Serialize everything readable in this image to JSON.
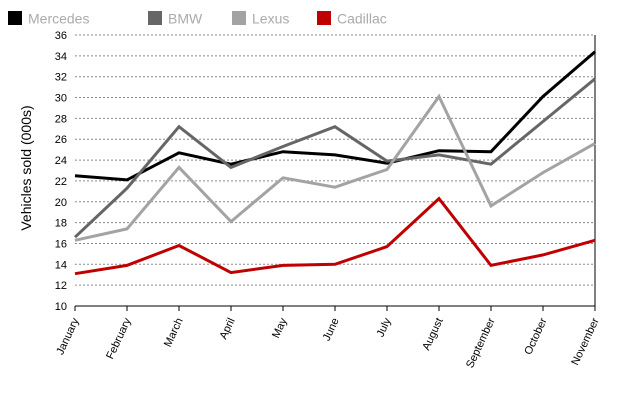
{
  "chart_data": {
    "type": "line",
    "title": "",
    "xlabel": "",
    "ylabel": "Vehicles sold (000s)",
    "ylim": [
      10,
      36
    ],
    "y_ticks": [
      "10",
      "12",
      "14",
      "16",
      "18",
      "20",
      "22",
      "24",
      "26",
      "28",
      "30",
      "32",
      "34",
      "36"
    ],
    "grid": "horizontal dotted",
    "legend": "top-left",
    "categories": [
      "January",
      "February",
      "March",
      "April",
      "May",
      "June",
      "July",
      "August",
      "September",
      "October",
      "November"
    ],
    "series": [
      {
        "name": "Mercedes",
        "color": "#000000",
        "values": [
          22.5,
          22.1,
          24.7,
          23.6,
          24.8,
          24.5,
          23.7,
          24.9,
          24.8,
          30.1,
          34.4
        ]
      },
      {
        "name": "BMW",
        "color": "#666666",
        "values": [
          16.6,
          21.3,
          27.2,
          23.3,
          25.3,
          27.2,
          23.9,
          24.5,
          23.6,
          27.7,
          31.8
        ]
      },
      {
        "name": "Lexus",
        "color": "#a3a3a3",
        "values": [
          16.3,
          17.4,
          23.3,
          18.1,
          22.3,
          21.4,
          23.1,
          30.1,
          19.6,
          22.8,
          25.6
        ]
      },
      {
        "name": "Cadillac",
        "color": "#c00000",
        "values": [
          13.1,
          13.9,
          15.8,
          13.2,
          13.9,
          14.0,
          15.7,
          20.3,
          13.9,
          14.9,
          16.3
        ]
      }
    ]
  }
}
